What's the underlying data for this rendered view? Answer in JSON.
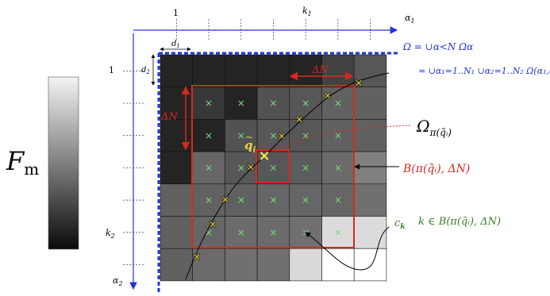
{
  "colorbar": {
    "label": "F",
    "label_sub": "m"
  },
  "axes": {
    "top_tick_1": "1",
    "top_tick_k": "k",
    "top_tick_k_sub": "1",
    "axis_right": "α",
    "axis_right_sub": "1",
    "left_tick_1": "1",
    "left_tick_k": "k",
    "left_tick_k_sub": "2",
    "axis_down": "α",
    "axis_down_sub": "2",
    "d1": "d",
    "d1_sub": "1",
    "d2": "d",
    "d2_sub": "2"
  },
  "labels": {
    "delta_n_top": "ΔN",
    "delta_n_left": "ΔN",
    "q_tilde": "q",
    "q_tilde_sub": "i",
    "omega_pi": "Ω",
    "omega_pi_sub": "π(q̃ᵢ)",
    "ball_label": "B(π(q̃ᵢ), ΔN)",
    "c_k": "c",
    "c_k_sub": "k",
    "k_in_ball": "k ∈ B(π(q̃ᵢ), ΔN)"
  },
  "equations": {
    "line1": "Ω = ∪α<N Ωα",
    "line2": "= ∪α₁=1..N₁ ∪α₂=1..N₂ Ω(α₁,α₂)"
  },
  "colors": {
    "grid_red": "#d42a1e",
    "axis_blue": "#2233dd",
    "cross_green": "#7dd87d",
    "text_green": "#3a7d2a",
    "text_red": "#d42a1e",
    "marker_yellow": "#ffe94a"
  },
  "grid": {
    "rows": 7,
    "cols": 7,
    "cells": [
      [
        0.14,
        0.14,
        0.14,
        0.14,
        0.14,
        0.26,
        0.34
      ],
      [
        0.14,
        0.22,
        0.14,
        0.32,
        0.34,
        0.38,
        0.38
      ],
      [
        0.14,
        0.14,
        0.32,
        0.34,
        0.34,
        0.38,
        0.38
      ],
      [
        0.14,
        0.4,
        0.34,
        0.34,
        0.36,
        0.42,
        0.5
      ],
      [
        0.38,
        0.38,
        0.38,
        0.4,
        0.4,
        0.4,
        0.44
      ],
      [
        0.38,
        0.4,
        0.42,
        0.42,
        0.44,
        0.86,
        0.86
      ],
      [
        0.38,
        0.42,
        0.44,
        0.44,
        0.85,
        1.0,
        1.0
      ]
    ]
  }
}
